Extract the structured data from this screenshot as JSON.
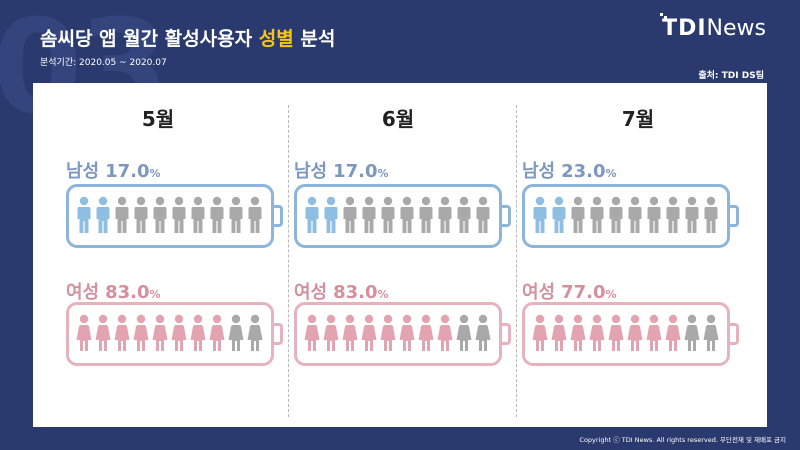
{
  "header": {
    "bg_number": "03",
    "title_prefix": "솜씨당 앱 월간 활성사용자 ",
    "title_highlight": "성별",
    "title_suffix": " 분석",
    "subtitle": "분석기간: 2020.05 ~ 2020.07",
    "source": "출처: TDI DS팀"
  },
  "logo": {
    "tdi": "TDI",
    "news": "News"
  },
  "footer": {
    "copyright": "Copyright ⓒ TDI News. All rights reserved. 무단전재 및 재배포 금지"
  },
  "colors": {
    "male_active": "#8ebfe3",
    "female_active": "#e3a3b0",
    "inactive": "#a9a9a9",
    "highlight": "#f5c518",
    "background": "#2b3a6e"
  },
  "chart_data": {
    "type": "pictogram",
    "title": "솜씨당 앱 월간 활성사용자 성별 분석",
    "unit": "%",
    "icons_per_row": 10,
    "categories": [
      "5월",
      "6월",
      "7월"
    ],
    "series": [
      {
        "name": "남성",
        "values": [
          17.0,
          17.0,
          23.0
        ],
        "display": [
          "17.0",
          "17.0",
          "23.0"
        ],
        "filled_icons": [
          2,
          2,
          2
        ]
      },
      {
        "name": "여성",
        "values": [
          83.0,
          83.0,
          77.0
        ],
        "display": [
          "83.0",
          "83.0",
          "77.0"
        ],
        "filled_icons": [
          8,
          8,
          8
        ]
      }
    ]
  }
}
